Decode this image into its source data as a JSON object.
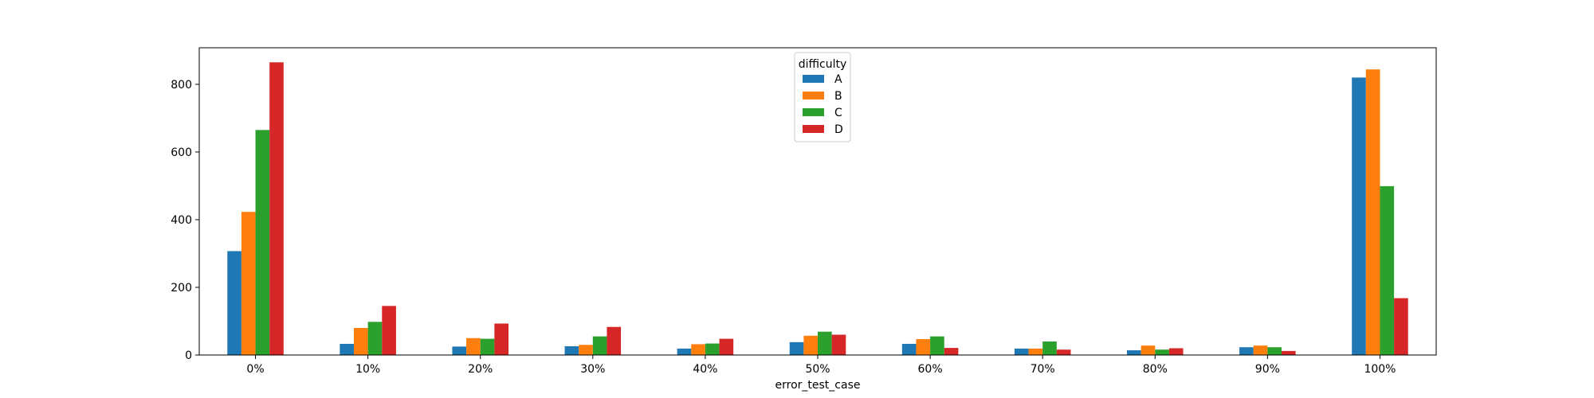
{
  "chart_data": {
    "type": "bar",
    "categories": [
      "0%",
      "10%",
      "20%",
      "30%",
      "40%",
      "50%",
      "60%",
      "70%",
      "80%",
      "90%",
      "100%"
    ],
    "series": [
      {
        "name": "A",
        "color": "#1f77b4",
        "values": [
          307,
          33,
          25,
          26,
          19,
          38,
          33,
          19,
          14,
          23,
          820
        ]
      },
      {
        "name": "B",
        "color": "#ff7f0e",
        "values": [
          423,
          80,
          50,
          30,
          32,
          57,
          47,
          19,
          28,
          28,
          844
        ]
      },
      {
        "name": "C",
        "color": "#2ca02c",
        "values": [
          665,
          98,
          48,
          55,
          34,
          69,
          55,
          40,
          16,
          23,
          499
        ]
      },
      {
        "name": "D",
        "color": "#d62728",
        "values": [
          865,
          145,
          93,
          83,
          48,
          60,
          21,
          16,
          20,
          12,
          168
        ]
      }
    ],
    "xlabel": "error_test_case",
    "ylabel": "",
    "ylim": [
      0,
      908
    ],
    "yticks": [
      "0",
      "200",
      "400",
      "600",
      "800"
    ],
    "legend": {
      "title": "difficulty",
      "placement": "top-center"
    },
    "grid": false
  }
}
